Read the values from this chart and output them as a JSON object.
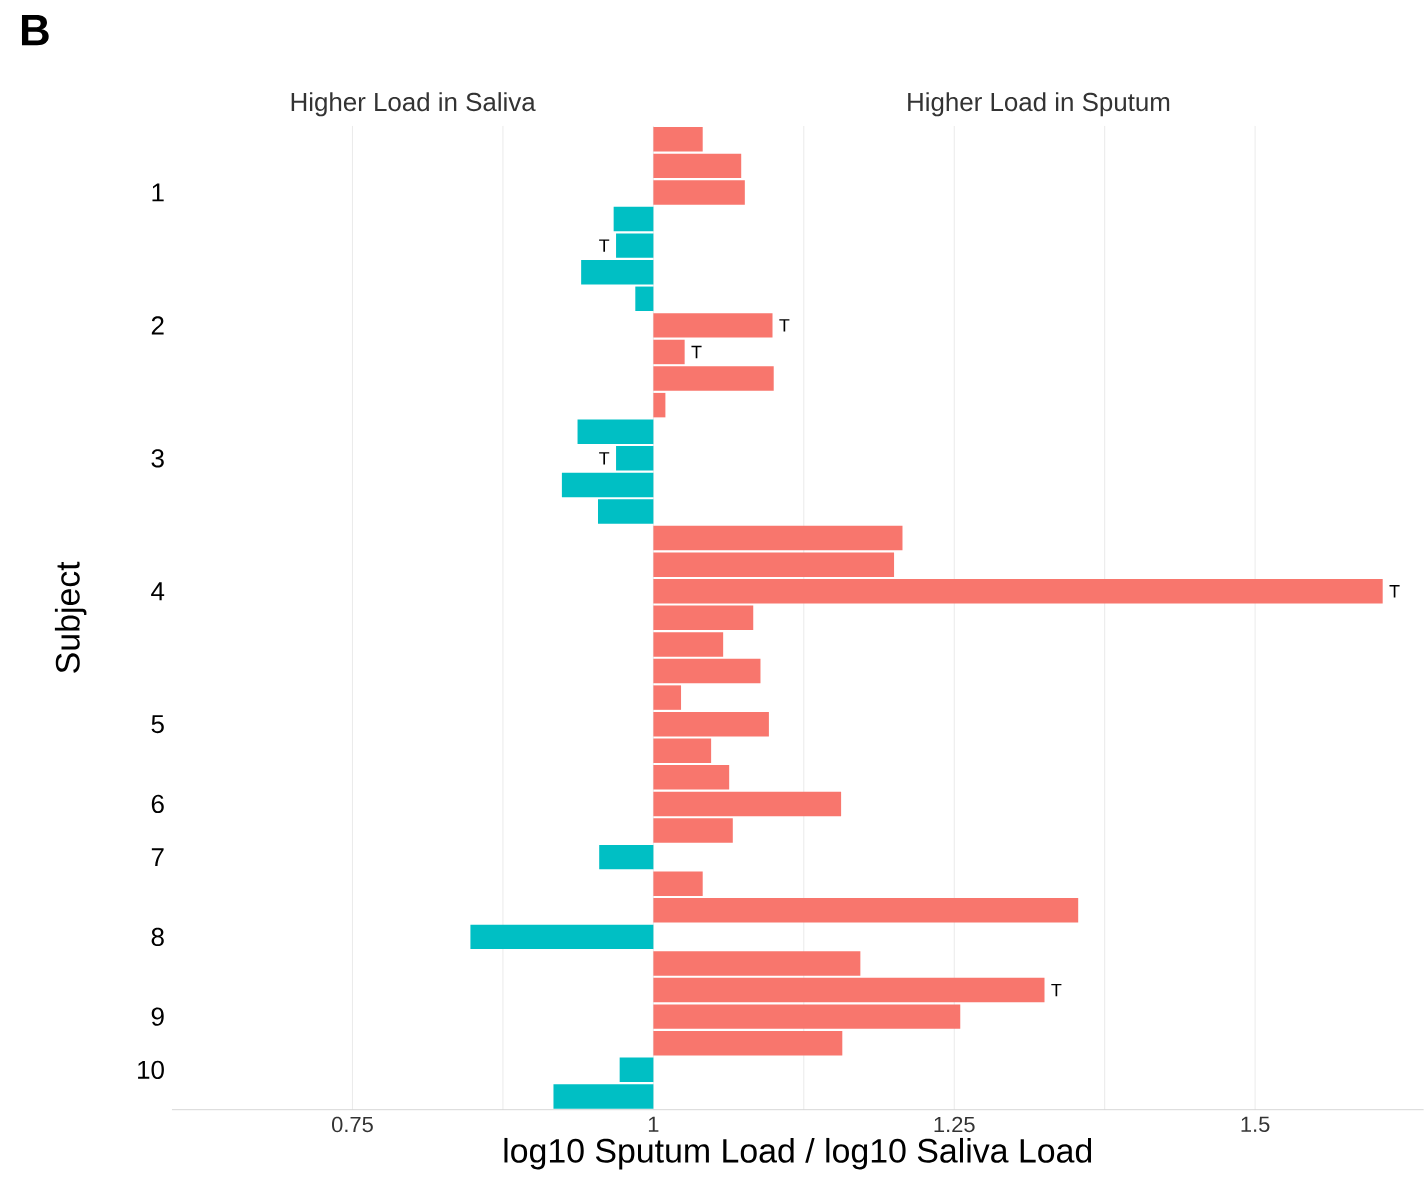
{
  "chart_data": {
    "type": "bar",
    "orientation": "horizontal",
    "title": "B",
    "annotations": [
      "Higher Load in Saliva",
      "Higher Load in Sputum"
    ],
    "xlabel": "log10 Sputum Load / log10 Saliva Load",
    "ylabel": "Subject",
    "categories": [
      null,
      null,
      "1",
      null,
      null,
      null,
      null,
      "2",
      null,
      null,
      null,
      null,
      "3",
      null,
      null,
      null,
      null,
      "4",
      null,
      null,
      null,
      null,
      "5",
      null,
      null,
      "6",
      null,
      "7",
      null,
      null,
      "8",
      null,
      null,
      "9",
      null,
      "10",
      null
    ],
    "base": [
      1,
      1,
      1,
      1,
      1,
      1,
      1,
      1,
      1,
      1,
      1,
      1,
      1,
      1,
      1,
      1,
      1,
      1,
      1,
      1,
      1,
      1,
      1,
      1,
      1,
      1,
      1,
      1,
      1,
      1,
      1,
      1,
      1,
      1,
      1,
      1,
      1
    ],
    "values": [
      0.041,
      0.073,
      0.076,
      -0.033,
      -0.031,
      -0.06,
      -0.015,
      0.099,
      0.026,
      0.1,
      0.01,
      -0.063,
      -0.031,
      -0.076,
      -0.046,
      0.207,
      0.2,
      0.606,
      0.083,
      0.058,
      0.089,
      0.023,
      0.096,
      0.048,
      0.063,
      0.156,
      0.066,
      -0.045,
      0.041,
      0.353,
      -0.152,
      0.172,
      0.325,
      0.255,
      0.157,
      -0.028,
      -0.083
    ],
    "colors": [
      "#f8766d",
      "#f8766d",
      "#f8766d",
      "#00bfc4",
      "#00bfc4",
      "#00bfc4",
      "#00bfc4",
      "#f8766d",
      "#f8766d",
      "#f8766d",
      "#f8766d",
      "#00bfc4",
      "#00bfc4",
      "#00bfc4",
      "#00bfc4",
      "#f8766d",
      "#f8766d",
      "#f8766d",
      "#f8766d",
      "#f8766d",
      "#f8766d",
      "#f8766d",
      "#f8766d",
      "#f8766d",
      "#f8766d",
      "#f8766d",
      "#f8766d",
      "#00bfc4",
      "#f8766d",
      "#f8766d",
      "#00bfc4",
      "#f8766d",
      "#f8766d",
      "#f8766d",
      "#f8766d",
      "#00bfc4",
      "#00bfc4"
    ],
    "value_labels": [
      null,
      null,
      null,
      null,
      "T",
      null,
      null,
      "T",
      "T",
      null,
      null,
      null,
      "T",
      null,
      null,
      null,
      null,
      "T",
      null,
      null,
      null,
      null,
      null,
      null,
      null,
      null,
      null,
      null,
      null,
      null,
      null,
      null,
      "T",
      null,
      null,
      null,
      null
    ],
    "xlim": [
      0.6,
      1.64
    ],
    "xticks": [
      0.75,
      1,
      1.25,
      1.5
    ],
    "grid": "x"
  }
}
